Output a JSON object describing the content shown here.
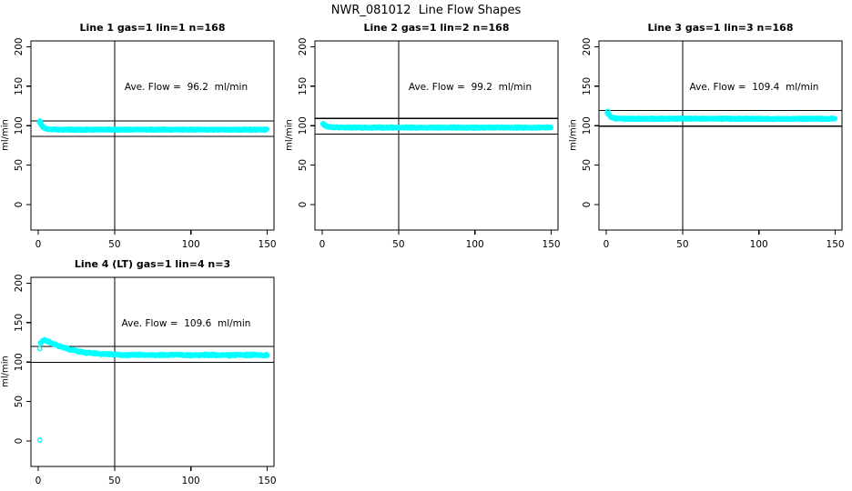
{
  "title": "NWR_081012  Line Flow Shapes",
  "colors": {
    "points": "#00FFFF",
    "axis": "#000000",
    "background": "#FFFFFF",
    "text": "#000000"
  },
  "chart_data": [
    {
      "type": "scatter",
      "title": "Line 1 gas=1 lin=1 n=168",
      "ave_label": "Ave. Flow =  96.2  ml/min",
      "ave_flow": 96.2,
      "ref_lines": [
        106.2,
        86.2
      ],
      "vline_x": 50,
      "xlim": [
        -5,
        155
      ],
      "ylim": [
        -35,
        207
      ],
      "xticks": [
        0,
        50,
        100,
        150
      ],
      "yticks": [
        0,
        50,
        100,
        150,
        200
      ],
      "ylabel": "ml/min",
      "legend": "none",
      "grid": false,
      "series": {
        "name": "flow trace",
        "x_start": 0.8,
        "x_end": 150,
        "step": 0.28,
        "jitter": 0.9,
        "keypoints": [
          [
            0.8,
            104.5
          ],
          [
            1.5,
            103
          ],
          [
            2.5,
            99.5
          ],
          [
            3.5,
            97.5
          ],
          [
            5,
            96.3
          ],
          [
            7,
            95.6
          ],
          [
            10,
            95.2
          ],
          [
            30,
            95
          ],
          [
            150,
            95
          ]
        ]
      },
      "extra_points": [
        [
          1,
          106
        ],
        [
          1.4,
          105
        ]
      ]
    },
    {
      "type": "scatter",
      "title": "Line 2 gas=1 lin=2 n=168",
      "ave_label": "Ave. Flow =  99.2  ml/min",
      "ave_flow": 99.2,
      "ref_lines": [
        109.2,
        89.2
      ],
      "vline_x": 50,
      "xlim": [
        -5,
        155
      ],
      "ylim": [
        -35,
        207
      ],
      "xticks": [
        0,
        50,
        100,
        150
      ],
      "yticks": [
        0,
        50,
        100,
        150,
        200
      ],
      "ylabel": "ml/min",
      "legend": "none",
      "grid": false,
      "series": {
        "name": "flow trace",
        "x_start": 0.5,
        "x_end": 150,
        "step": 0.28,
        "jitter": 0.9,
        "keypoints": [
          [
            0.5,
            102
          ],
          [
            1.5,
            100.8
          ],
          [
            3,
            99.3
          ],
          [
            5,
            98.4
          ],
          [
            8,
            97.9
          ],
          [
            15,
            97.6
          ],
          [
            150,
            97.6
          ]
        ]
      },
      "extra_points": [
        [
          0.7,
          102.5
        ]
      ]
    },
    {
      "type": "scatter",
      "title": "Line 3 gas=1 lin=3 n=168",
      "ave_label": "Ave. Flow =  109.4  ml/min",
      "ave_flow": 109.4,
      "ref_lines": [
        119.4,
        99.4
      ],
      "vline_x": 50,
      "xlim": [
        -5,
        155
      ],
      "ylim": [
        -35,
        207
      ],
      "xticks": [
        0,
        50,
        100,
        150
      ],
      "yticks": [
        0,
        50,
        100,
        150,
        200
      ],
      "ylabel": "ml/min",
      "legend": "none",
      "grid": false,
      "series": {
        "name": "flow trace",
        "x_start": 0.8,
        "x_end": 150,
        "step": 0.28,
        "jitter": 0.9,
        "keypoints": [
          [
            0.8,
            116.5
          ],
          [
            1.8,
            113.5
          ],
          [
            3,
            111.3
          ],
          [
            4.5,
            110
          ],
          [
            6.5,
            109.2
          ],
          [
            10,
            108.8
          ],
          [
            150,
            108.7
          ]
        ]
      },
      "extra_points": [
        [
          1,
          118.3
        ]
      ]
    },
    {
      "type": "scatter",
      "title": "Line 4 (LT) gas=1 lin=4 n=3",
      "ave_label": "Ave. Flow =  109.6  ml/min",
      "ave_flow": 109.6,
      "ref_lines": [
        119.6,
        99.6
      ],
      "vline_x": 50,
      "xlim": [
        -5,
        155
      ],
      "ylim": [
        -35,
        207
      ],
      "xticks": [
        0,
        50,
        100,
        150
      ],
      "yticks": [
        0,
        50,
        100,
        150,
        200
      ],
      "ylabel": "ml/min",
      "legend": "none",
      "grid": false,
      "series": {
        "name": "flow trace",
        "x_start": 1.5,
        "x_end": 150,
        "step": 0.5,
        "jitter": 1.3,
        "keypoints": [
          [
            1.5,
            124
          ],
          [
            2.5,
            126.5
          ],
          [
            3.5,
            127.5
          ],
          [
            5,
            127
          ],
          [
            7,
            125.5
          ],
          [
            9,
            124
          ],
          [
            12,
            121.5
          ],
          [
            15,
            119.5
          ],
          [
            18,
            117.5
          ],
          [
            22,
            115.5
          ],
          [
            26,
            113.8
          ],
          [
            30,
            112.3
          ],
          [
            35,
            111.2
          ],
          [
            40,
            110.4
          ],
          [
            45,
            110
          ],
          [
            50,
            109.8
          ],
          [
            55,
            109.3
          ],
          [
            60,
            108.8
          ],
          [
            65,
            109.4
          ],
          [
            70,
            109
          ],
          [
            75,
            108.7
          ],
          [
            80,
            109.2
          ],
          [
            85,
            108.8
          ],
          [
            90,
            109.3
          ],
          [
            95,
            108.7
          ],
          [
            100,
            109.1
          ],
          [
            105,
            108.6
          ],
          [
            110,
            109
          ],
          [
            115,
            108.8
          ],
          [
            120,
            109.2
          ],
          [
            125,
            108.6
          ],
          [
            130,
            109
          ],
          [
            135,
            108.7
          ],
          [
            140,
            109.1
          ],
          [
            145,
            108.6
          ],
          [
            150,
            108.8
          ]
        ]
      },
      "extra_points": [
        [
          1,
          117
        ],
        [
          1,
          1
        ]
      ]
    }
  ]
}
